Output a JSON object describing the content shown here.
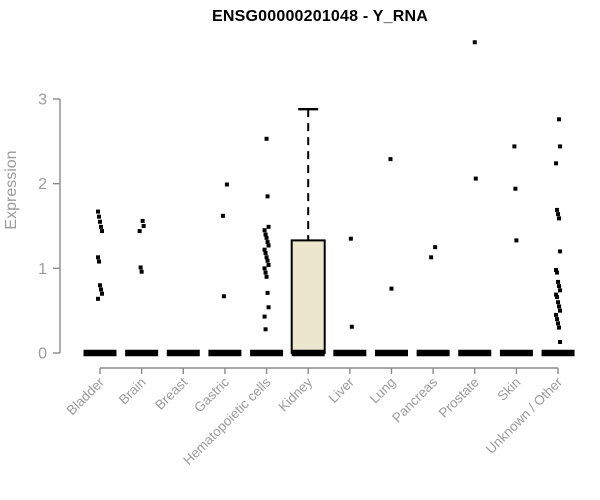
{
  "chart_data": {
    "type": "boxplot",
    "title": "ENSG00000201048 - Y_RNA",
    "ylabel": "Expression",
    "ylim": [
      0,
      3
    ],
    "yticks": [
      0,
      1,
      2,
      3
    ],
    "grid": false,
    "legend": "none",
    "colors": {
      "axis": "#8a8a8a",
      "tick_labels": "#9b9b9b",
      "title": "#000000",
      "box_fill": "#ece7cc",
      "box_stroke": "#000000",
      "points": "#000000",
      "zero_bar": "#000000"
    },
    "categories": [
      {
        "label": "Bladder",
        "zero_bar": true,
        "points": [
          1.67,
          1.61,
          1.55,
          1.49,
          1.44,
          1.13,
          1.08,
          0.8,
          0.75,
          0.7,
          0.64
        ]
      },
      {
        "label": "Brain",
        "zero_bar": true,
        "points": [
          1.56,
          1.5,
          1.44,
          1.01,
          0.96
        ]
      },
      {
        "label": "Breast",
        "zero_bar": true,
        "points": []
      },
      {
        "label": "Gastric",
        "zero_bar": true,
        "points": [
          1.99,
          1.62,
          0.67
        ]
      },
      {
        "label": "Hematopoietic cells",
        "zero_bar": true,
        "points": [
          2.53,
          1.85,
          1.49,
          1.45,
          1.4,
          1.36,
          1.31,
          1.27,
          1.22,
          1.18,
          1.13,
          1.09,
          1.04,
          1.0,
          0.95,
          0.9,
          0.71,
          0.54,
          0.43,
          0.28
        ]
      },
      {
        "label": "Kidney",
        "zero_bar": true,
        "points": [],
        "box": {
          "q1": 0,
          "median": 0,
          "q3": 1.33,
          "whisker_low": 0,
          "whisker_high": 2.88
        }
      },
      {
        "label": "Liver",
        "zero_bar": true,
        "points": [
          1.35,
          0.31
        ]
      },
      {
        "label": "Lung",
        "zero_bar": true,
        "points": [
          2.29,
          0.76
        ]
      },
      {
        "label": "Pancreas",
        "zero_bar": true,
        "points": [
          1.25,
          1.13
        ]
      },
      {
        "label": "Prostate",
        "zero_bar": true,
        "points": [
          3.67,
          2.06
        ]
      },
      {
        "label": "Skin",
        "zero_bar": true,
        "points": [
          2.44,
          1.94,
          1.33
        ]
      },
      {
        "label": "Unknown / Other",
        "zero_bar": true,
        "points": [
          2.76,
          2.44,
          2.24,
          1.69,
          1.64,
          1.59,
          1.2,
          0.98,
          0.95,
          0.84,
          0.79,
          0.74,
          0.69,
          0.66,
          0.6,
          0.55,
          0.5,
          0.45,
          0.4,
          0.35,
          0.3,
          0.13
        ]
      }
    ]
  }
}
